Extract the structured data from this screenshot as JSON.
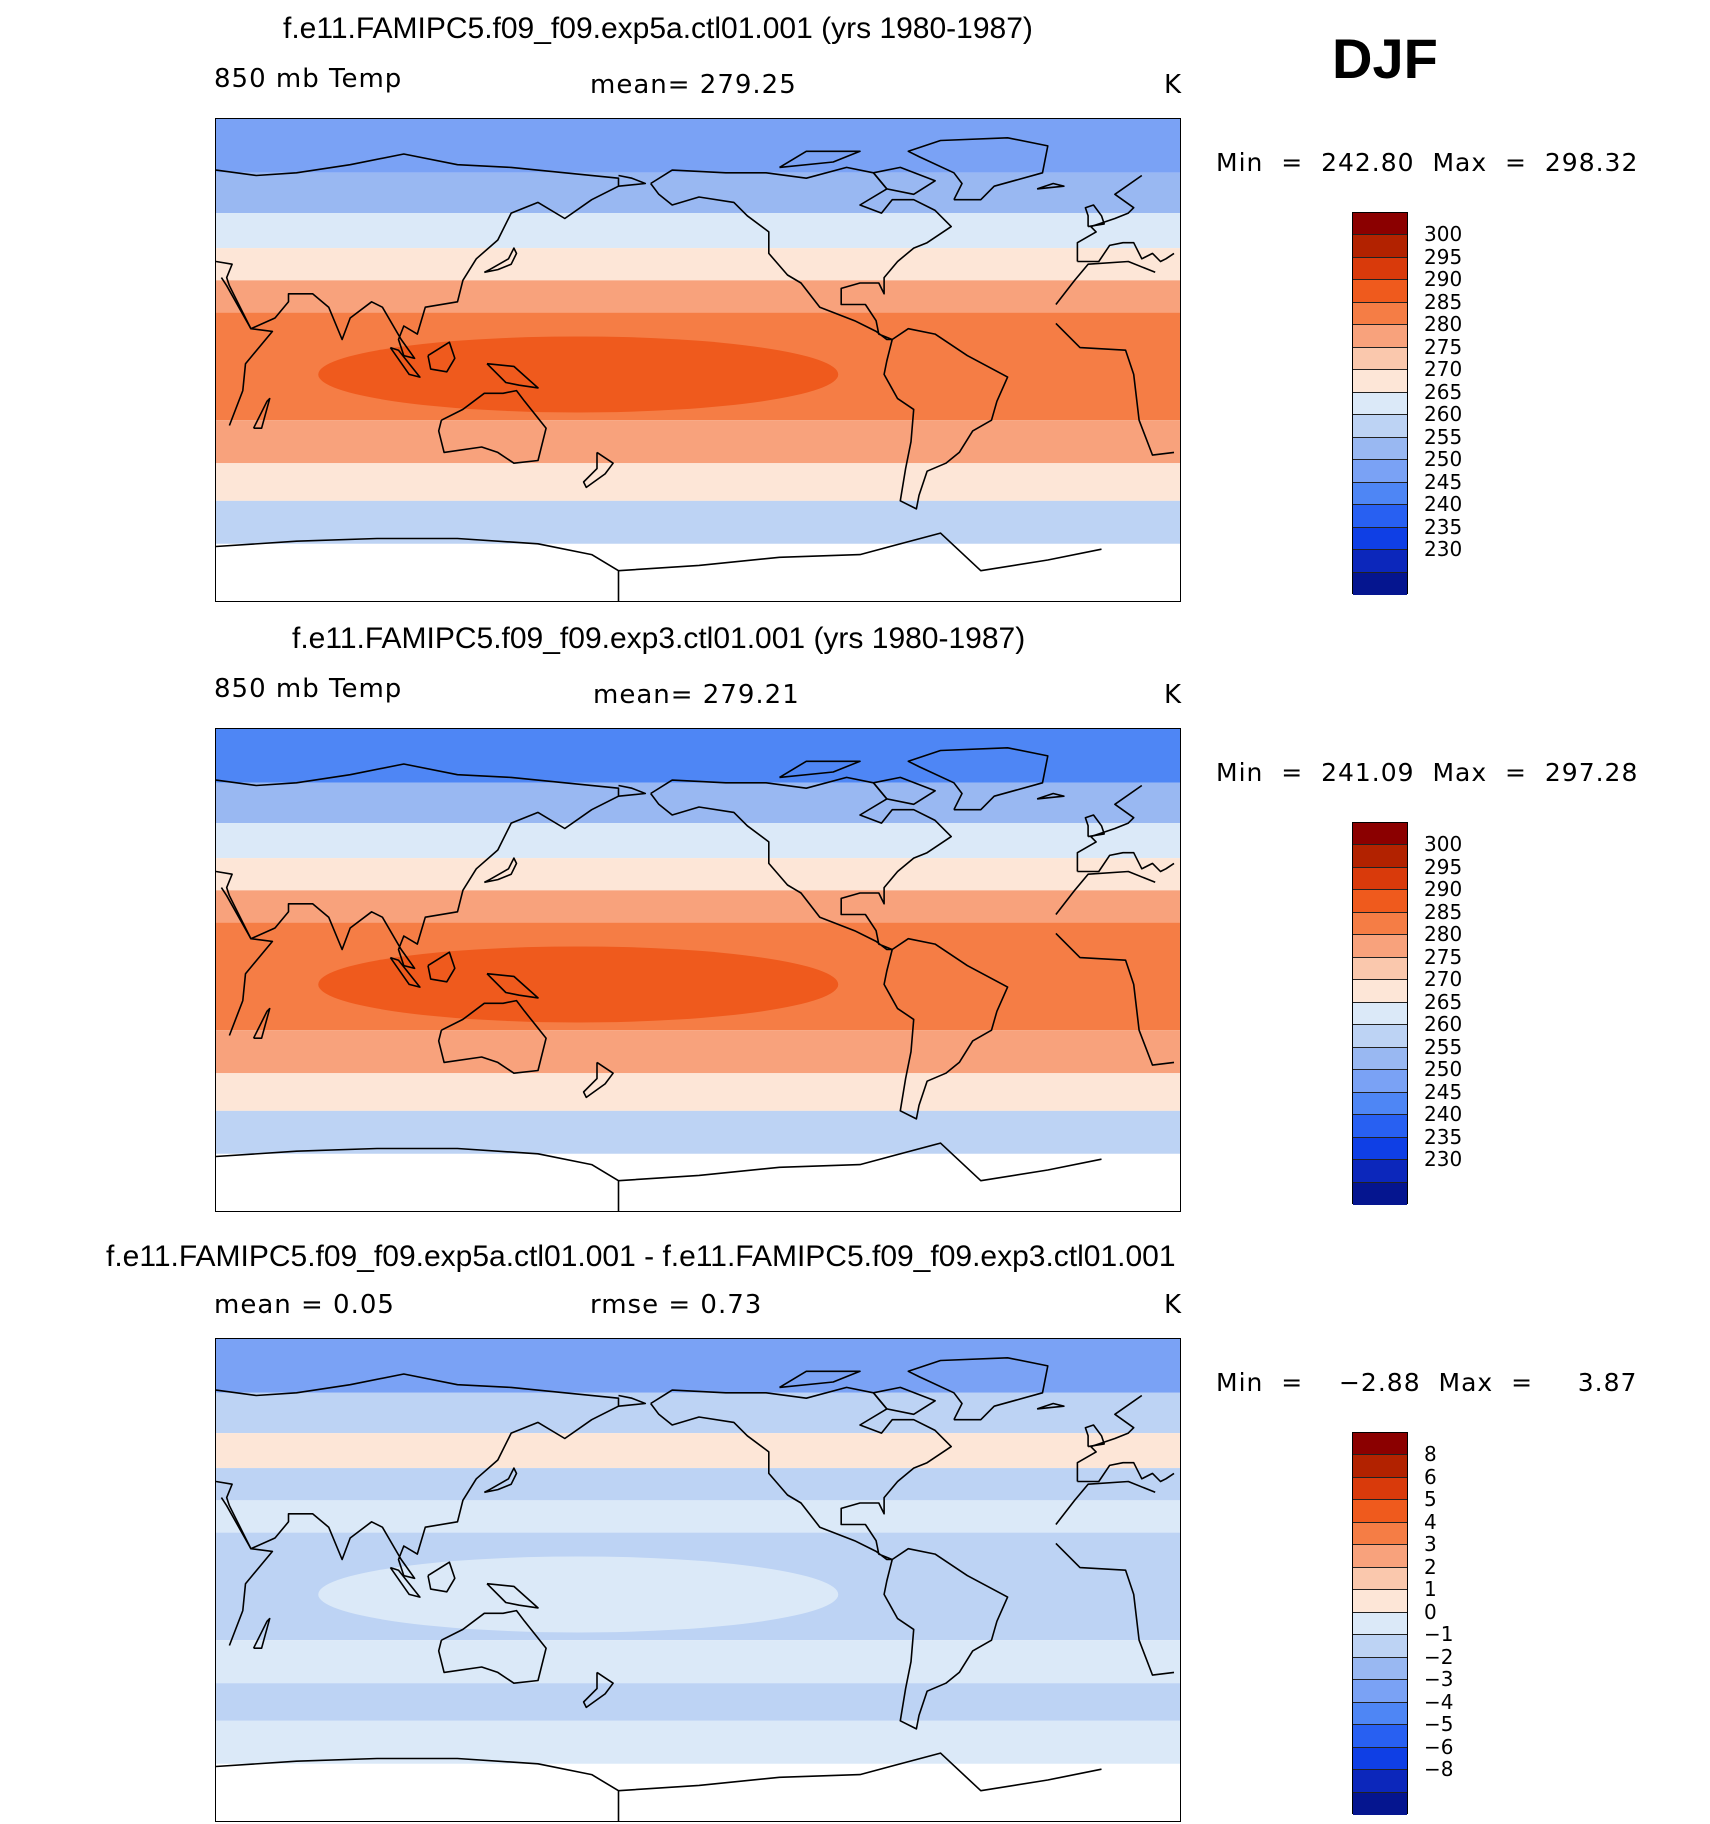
{
  "season": "DJF",
  "panels": [
    {
      "title": "f.e11.FAMIPC5.f09_f09.exp5a.ctl01.001 (yrs 1980-1987)",
      "left_label": "850 mb Temp",
      "center_label": "mean=  279.25",
      "units": "K",
      "minmax": "Min  =  242.80  Max  =  298.32",
      "colorbar": {
        "colors": [
          "#8b0000",
          "#b22200",
          "#d93a0b",
          "#ef5a1d",
          "#f57d45",
          "#f8a27c",
          "#fac8ad",
          "#fde6d7",
          "#dbe9f8",
          "#bdd3f4",
          "#99b8f2",
          "#7aa2f5",
          "#4e86f5",
          "#2860f2",
          "#0f3fe5",
          "#0c27bb",
          "#05158f"
        ],
        "labels": [
          "300",
          "295",
          "290",
          "285",
          "280",
          "275",
          "270",
          "265",
          "260",
          "255",
          "250",
          "245",
          "240",
          "235",
          "230"
        ]
      },
      "field_kind": "absolute",
      "field_values": {
        "arctic": 250,
        "north_high": 258,
        "north_mid": 266,
        "north_low": 274,
        "subtropics": 282,
        "tropics": 287,
        "warm_pool": 293,
        "south_mid": 280,
        "south_high": 270,
        "south_polar": 262
      }
    },
    {
      "title": "f.e11.FAMIPC5.f09_f09.exp3.ctl01.001 (yrs 1980-1987)",
      "left_label": "850 mb Temp",
      "center_label": "mean=  279.21",
      "units": "K",
      "minmax": "Min  =  241.09  Max  =  297.28",
      "colorbar": {
        "colors": [
          "#8b0000",
          "#b22200",
          "#d93a0b",
          "#ef5a1d",
          "#f57d45",
          "#f8a27c",
          "#fac8ad",
          "#fde6d7",
          "#dbe9f8",
          "#bdd3f4",
          "#99b8f2",
          "#7aa2f5",
          "#4e86f5",
          "#2860f2",
          "#0f3fe5",
          "#0c27bb",
          "#05158f"
        ],
        "labels": [
          "300",
          "295",
          "290",
          "285",
          "280",
          "275",
          "270",
          "265",
          "260",
          "255",
          "250",
          "245",
          "240",
          "235",
          "230"
        ]
      },
      "field_kind": "absolute",
      "field_values": {
        "arctic": 249,
        "north_high": 257,
        "north_mid": 266,
        "north_low": 274,
        "subtropics": 282,
        "tropics": 287,
        "warm_pool": 292,
        "south_mid": 280,
        "south_high": 270,
        "south_polar": 262
      }
    },
    {
      "title": "f.e11.FAMIPC5.f09_f09.exp5a.ctl01.001 - f.e11.FAMIPC5.f09_f09.exp3.ctl01.001",
      "left_label": "mean =     0.05",
      "center_label": "rmse =     0.73",
      "units": "K",
      "minmax": "Min  =    −2.88  Max  =     3.87",
      "colorbar": {
        "colors": [
          "#8b0000",
          "#b22200",
          "#d93a0b",
          "#ef5a1d",
          "#f57d45",
          "#f8a27c",
          "#fac8ad",
          "#fde6d7",
          "#dbe9f8",
          "#bdd3f4",
          "#99b8f2",
          "#7aa2f5",
          "#4e86f5",
          "#2860f2",
          "#0f3fe5",
          "#0c27bb",
          "#05158f"
        ],
        "labels": [
          "8",
          "6",
          "5",
          "4",
          "3",
          "2",
          "1",
          "0",
          "−1",
          "−2",
          "−3",
          "−4",
          "−5",
          "−6",
          "−8"
        ]
      },
      "field_kind": "difference",
      "field_values": {
        "arctic": -3,
        "north_high": -1,
        "north_mid": 1,
        "north_low": -0.5,
        "subtropics": 0.5,
        "tropics": -0.5,
        "warm_pool": 0.5,
        "south_mid": 0.5,
        "south_high": -0.5,
        "south_polar": 0.5
      }
    }
  ]
}
